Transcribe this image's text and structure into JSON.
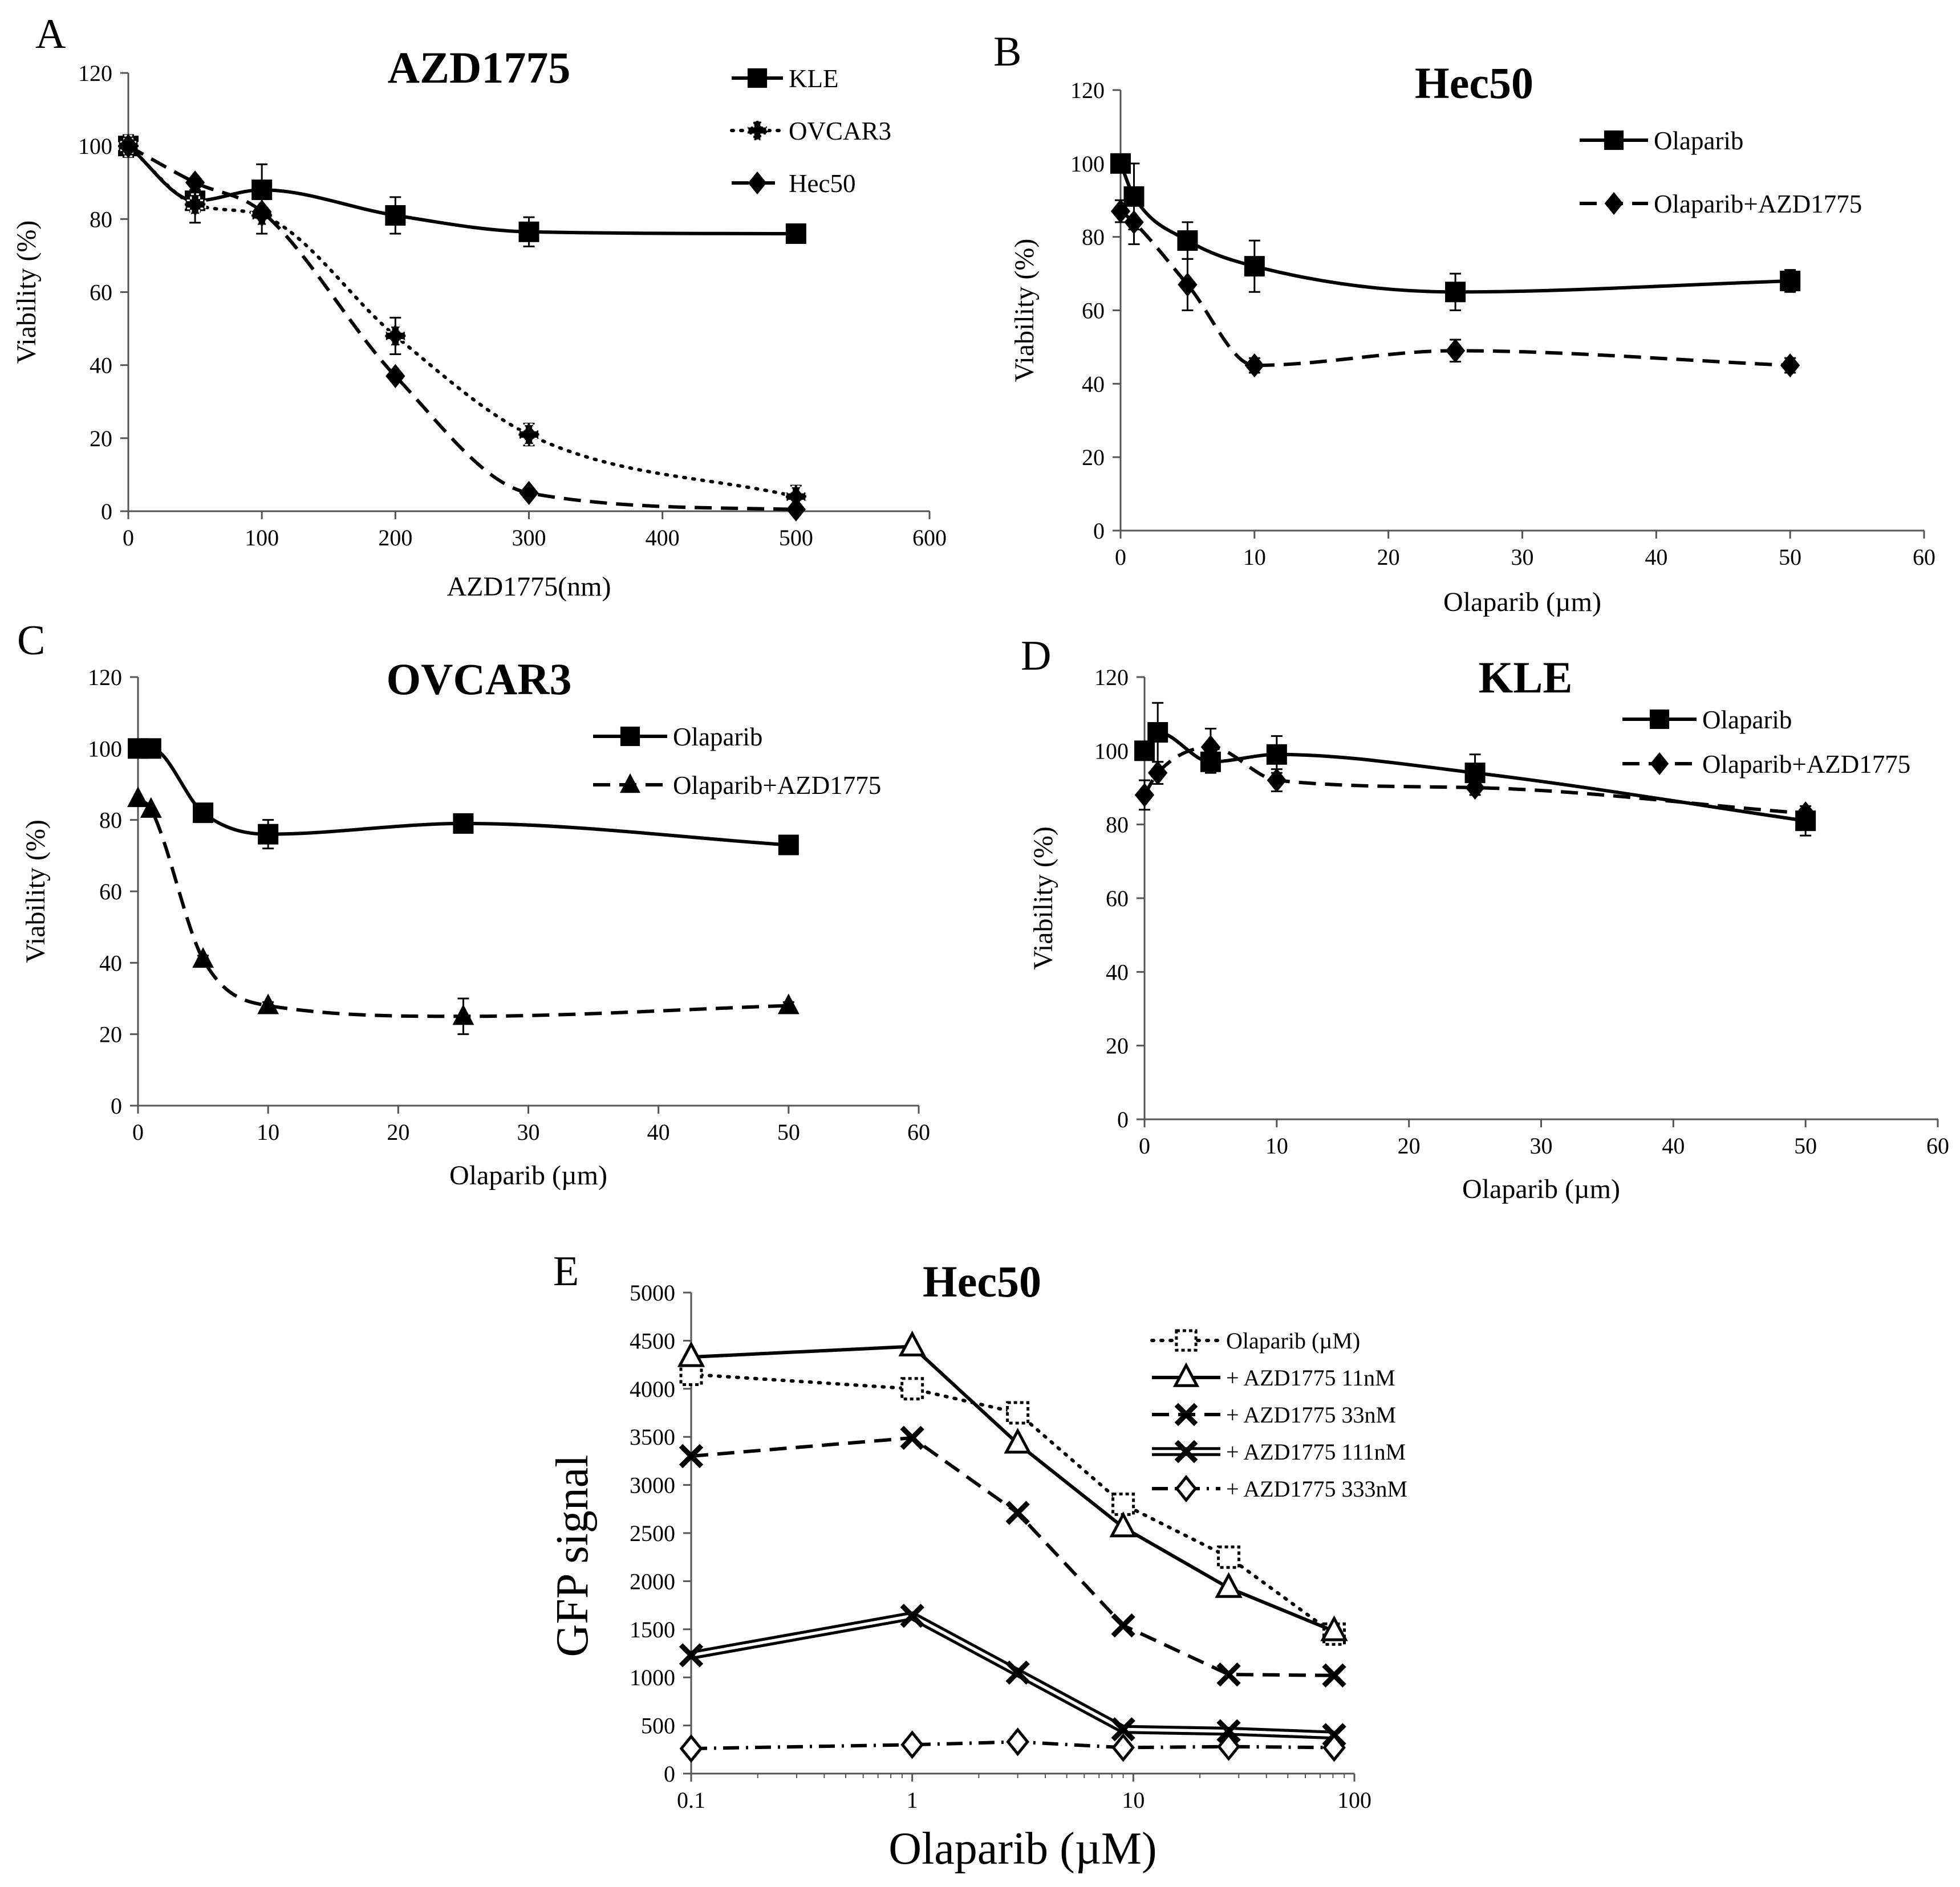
{
  "figure": {
    "panels": [
      "A",
      "B",
      "C",
      "D",
      "E"
    ]
  },
  "colors": {
    "ink": "#000000",
    "background": "#ffffff",
    "marker_fill_open": "#ffffff"
  },
  "chart_data": [
    {
      "panel": "A",
      "type": "line",
      "title": "AZD1775",
      "xlabel": "AZD1775(nm)",
      "ylabel": "Viability (%)",
      "xlim": [
        0,
        600
      ],
      "ylim": [
        0,
        120
      ],
      "xticks": [
        0,
        100,
        200,
        300,
        400,
        500,
        600
      ],
      "yticks": [
        0,
        20,
        40,
        60,
        80,
        100,
        120
      ],
      "legend_position": "top-right",
      "series": [
        {
          "name": "KLE",
          "dash": "solid",
          "marker": "square",
          "x": [
            0,
            50,
            100,
            200,
            300,
            500
          ],
          "y": [
            100,
            85,
            88,
            81,
            76.5,
            76
          ],
          "err": [
            2,
            3,
            7,
            5,
            4,
            0
          ]
        },
        {
          "name": "OVCAR3",
          "dash": "dotted",
          "marker": "cross",
          "x": [
            0,
            50,
            100,
            200,
            300,
            500
          ],
          "y": [
            100,
            84,
            81,
            48,
            21,
            4
          ],
          "err": [
            3,
            5,
            5,
            5,
            3,
            3
          ]
        },
        {
          "name": "Hec50",
          "dash": "dashed",
          "marker": "diamond",
          "x": [
            0,
            50,
            100,
            200,
            300,
            500
          ],
          "y": [
            100,
            90,
            82,
            37,
            5,
            0.5
          ],
          "err": [
            0,
            0,
            0,
            0,
            0,
            0
          ]
        }
      ]
    },
    {
      "panel": "B",
      "type": "line",
      "title": "Hec50",
      "xlabel": "Olaparib (µm)",
      "ylabel": "Viability (%)",
      "xlim": [
        0,
        60
      ],
      "ylim": [
        0,
        120
      ],
      "xticks": [
        0,
        10,
        20,
        30,
        40,
        50,
        60
      ],
      "yticks": [
        0,
        20,
        40,
        60,
        80,
        100,
        120
      ],
      "legend_position": "top-right",
      "series": [
        {
          "name": "Olaparib",
          "dash": "solid",
          "marker": "square",
          "x": [
            0,
            1,
            5,
            10,
            25,
            50
          ],
          "y": [
            100,
            91,
            79,
            72,
            65,
            68
          ],
          "err": [
            0,
            9,
            5,
            7,
            5,
            3
          ]
        },
        {
          "name": "Olaparib+AZD1775",
          "dash": "dashed",
          "marker": "diamond",
          "x": [
            0,
            1,
            5,
            10,
            25,
            50
          ],
          "y": [
            87,
            84,
            67,
            45,
            49,
            45
          ],
          "err": [
            3,
            6,
            7,
            2,
            3,
            2
          ]
        }
      ]
    },
    {
      "panel": "C",
      "type": "line",
      "title": "OVCAR3",
      "xlabel": "Olaparib (µm)",
      "ylabel": "Viability (%)",
      "xlim": [
        0,
        60
      ],
      "ylim": [
        0,
        120
      ],
      "xticks": [
        0,
        10,
        20,
        30,
        40,
        50,
        60
      ],
      "yticks": [
        0,
        20,
        40,
        60,
        80,
        100,
        120
      ],
      "legend_position": "top-right",
      "series": [
        {
          "name": "Olaparib",
          "dash": "solid",
          "marker": "square",
          "x": [
            0,
            1,
            5,
            10,
            25,
            50
          ],
          "y": [
            100,
            100,
            82,
            76,
            79,
            73
          ],
          "err": [
            0,
            0,
            1,
            4,
            1,
            1
          ]
        },
        {
          "name": "Olaparib+AZD1775",
          "dash": "dashed",
          "marker": "triangle",
          "x": [
            0,
            1,
            5,
            10,
            25,
            50
          ],
          "y": [
            86,
            83,
            41,
            28,
            25,
            28
          ],
          "err": [
            0,
            0,
            1,
            1,
            5,
            1
          ]
        }
      ]
    },
    {
      "panel": "D",
      "type": "line",
      "title": "KLE",
      "xlabel": "Olaparib (µm)",
      "ylabel": "Viability (%)",
      "xlim": [
        0,
        60
      ],
      "ylim": [
        0,
        120
      ],
      "xticks": [
        0,
        10,
        20,
        30,
        40,
        50,
        60
      ],
      "yticks": [
        0,
        20,
        40,
        60,
        80,
        100,
        120
      ],
      "legend_position": "top-right",
      "series": [
        {
          "name": "Olaparib",
          "dash": "solid",
          "marker": "square",
          "x": [
            0,
            1,
            5,
            10,
            25,
            50
          ],
          "y": [
            100,
            105,
            97,
            99,
            94,
            81
          ],
          "err": [
            0,
            8,
            3,
            5,
            5,
            4
          ]
        },
        {
          "name": "Olaparib+AZD1775",
          "dash": "dashed",
          "marker": "diamond",
          "x": [
            0,
            1,
            5,
            10,
            25,
            50
          ],
          "y": [
            88,
            94,
            101,
            92,
            90,
            83
          ],
          "err": [
            4,
            3,
            5,
            3,
            2,
            1
          ]
        }
      ]
    },
    {
      "panel": "E",
      "type": "line",
      "title": "Hec50",
      "xlabel": "Olaparib (µM)",
      "ylabel": "GFP signal",
      "xscale": "log",
      "xlim": [
        0.1,
        100
      ],
      "ylim": [
        0,
        5000
      ],
      "xticks": [
        0.1,
        1,
        10,
        100
      ],
      "xtick_labels": [
        "0.1",
        "1",
        "10",
        "100"
      ],
      "yticks": [
        0,
        500,
        1000,
        1500,
        2000,
        2500,
        3000,
        3500,
        4000,
        4500,
        5000
      ],
      "legend_position": "right",
      "series": [
        {
          "name": "Olaparib (µM)",
          "dash": "dotted",
          "marker": "open-square",
          "x": [
            0.1,
            1,
            3,
            9,
            27,
            81
          ],
          "y": [
            4150,
            4000,
            3750,
            2800,
            2250,
            1450
          ]
        },
        {
          "name": "+ AZD1775 11nM",
          "dash": "solid",
          "marker": "open-triangle",
          "x": [
            0.1,
            1,
            3,
            9,
            27,
            81
          ],
          "y": [
            4330,
            4440,
            3430,
            2560,
            1930,
            1480
          ]
        },
        {
          "name": "+ AZD1775 33nM",
          "dash": "dashed",
          "marker": "x",
          "x": [
            0.1,
            1,
            3,
            9,
            27,
            81
          ],
          "y": [
            3300,
            3490,
            2710,
            1540,
            1030,
            1020
          ]
        },
        {
          "name": "+ AZD1775 111nM",
          "dash": "double",
          "marker": "x",
          "x": [
            0.1,
            1,
            3,
            9,
            27,
            81
          ],
          "y": [
            1230,
            1640,
            1050,
            460,
            440,
            400
          ]
        },
        {
          "name": "+ AZD1775 333nM",
          "dash": "dashdot",
          "marker": "open-diamond",
          "x": [
            0.1,
            1,
            3,
            9,
            27,
            81
          ],
          "y": [
            260,
            300,
            330,
            270,
            280,
            270
          ]
        }
      ]
    }
  ]
}
